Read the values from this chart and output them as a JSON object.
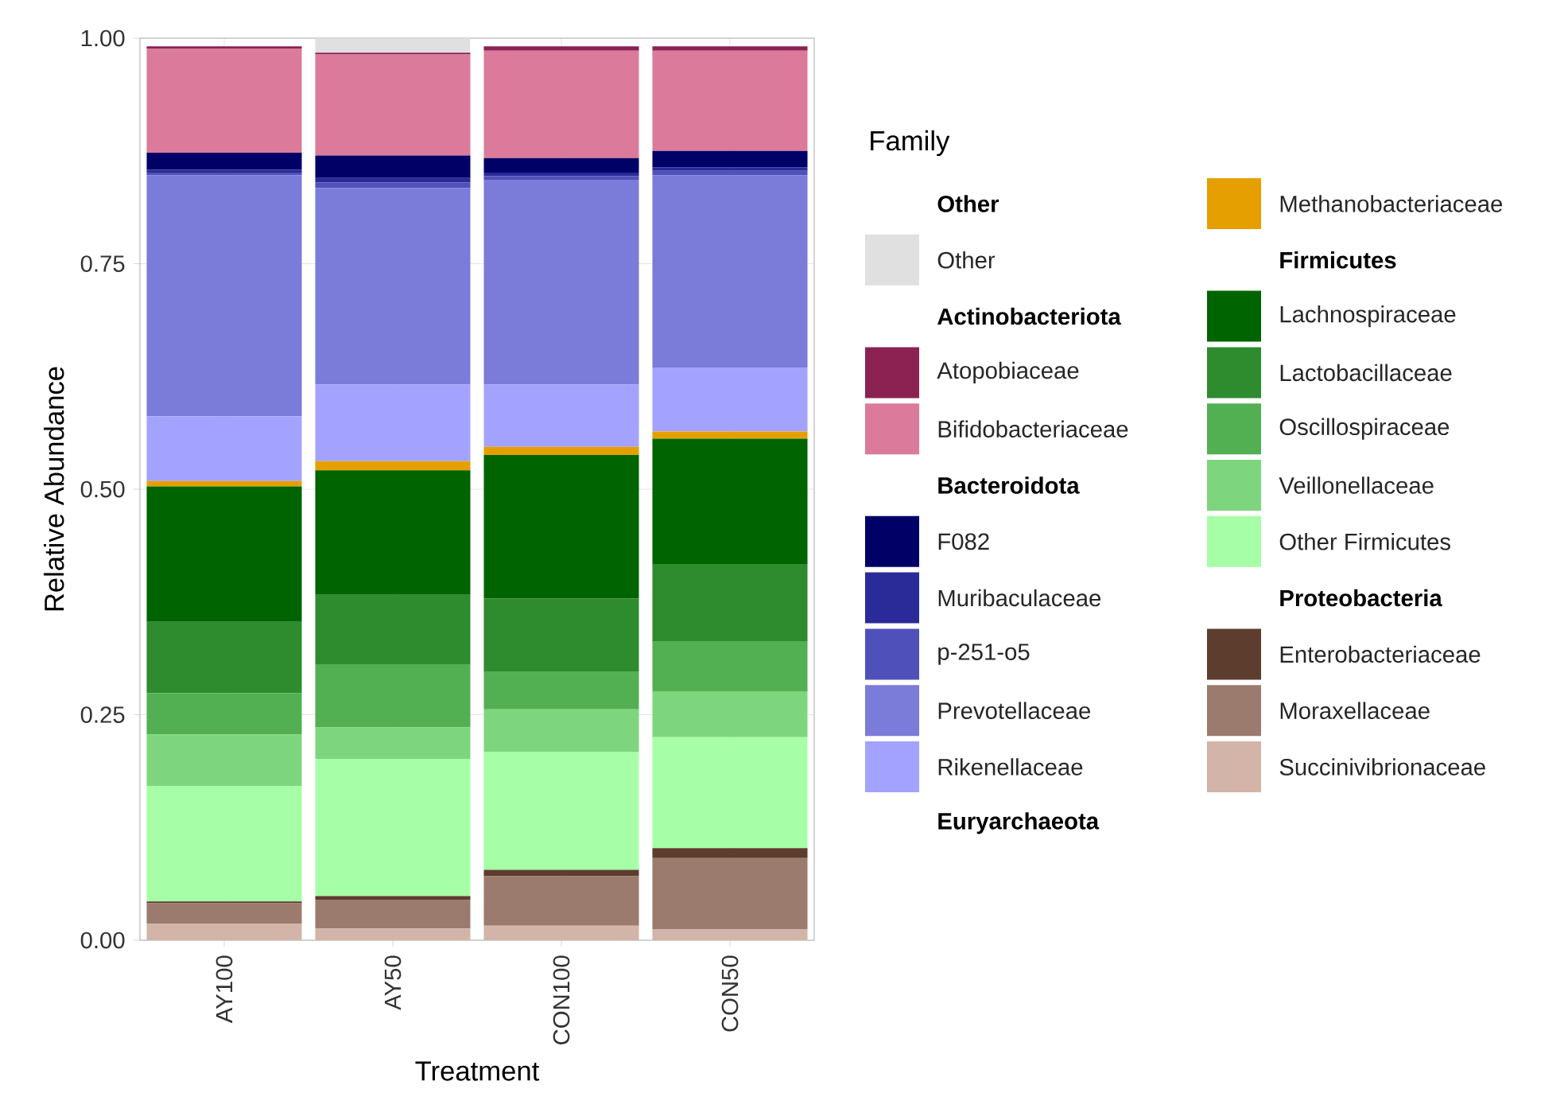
{
  "chart_data": {
    "type": "bar",
    "stacked": true,
    "xlabel": "Treatment",
    "ylabel": "Relative Abundance",
    "legend_title": "Family",
    "legend": "right",
    "grid": true,
    "categories": [
      "AY100",
      "AY50",
      "CON100",
      "CON50"
    ],
    "ylim": [
      0,
      1
    ],
    "yticks": [
      {
        "value": 0,
        "label": "0.00"
      },
      {
        "value": 0.25,
        "label": "0.25"
      },
      {
        "value": 0.5,
        "label": "0.50"
      },
      {
        "value": 0.75,
        "label": "0.75"
      },
      {
        "value": 1,
        "label": "1.00"
      }
    ],
    "annotations": [
      "Other",
      "Actinobacteriota",
      "Bacteroidota",
      "Euryarchaeota",
      "Firmicutes",
      "Proteobacteria"
    ],
    "series": [
      {
        "name": "Succinivibrionaceae",
        "color": "#d2b4a8",
        "values": [
          0.018,
          0.013,
          0.016,
          0.012
        ]
      },
      {
        "name": "Moraxellaceae",
        "color": "#9b7b6e",
        "values": [
          0.023,
          0.032,
          0.055,
          0.079
        ]
      },
      {
        "name": "Enterobacteriaceae",
        "color": "#5c3d2e",
        "values": [
          0.002,
          0.004,
          0.007,
          0.011
        ]
      },
      {
        "name": "Other Firmicutes",
        "color": "#a6ffa6",
        "values": [
          0.128,
          0.152,
          0.131,
          0.123
        ]
      },
      {
        "name": "Veillonellaceae",
        "color": "#7dd67d",
        "values": [
          0.057,
          0.035,
          0.047,
          0.051
        ]
      },
      {
        "name": "Oscillospiraceae",
        "color": "#52b052",
        "values": [
          0.046,
          0.07,
          0.042,
          0.055
        ]
      },
      {
        "name": "Lactobacillaceae",
        "color": "#2e8b2e",
        "values": [
          0.079,
          0.077,
          0.081,
          0.086
        ]
      },
      {
        "name": "Lachnospiraceae",
        "color": "#006400",
        "values": [
          0.15,
          0.138,
          0.159,
          0.139
        ]
      },
      {
        "name": "Methanobacteriaceae",
        "color": "#e5a000",
        "values": [
          0.006,
          0.01,
          0.009,
          0.008
        ]
      },
      {
        "name": "Rikenellaceae",
        "color": "#a3a3ff",
        "values": [
          0.072,
          0.085,
          0.069,
          0.071
        ]
      },
      {
        "name": "Prevotellaceae",
        "color": "#7b7bd9",
        "values": [
          0.267,
          0.218,
          0.227,
          0.213
        ]
      },
      {
        "name": "p-251-o5",
        "color": "#5050bb",
        "values": [
          0.003,
          0.006,
          0.004,
          0.005
        ]
      },
      {
        "name": "Muribaculaceae",
        "color": "#2a2a99",
        "values": [
          0.003,
          0.005,
          0.004,
          0.004
        ]
      },
      {
        "name": "F082",
        "color": "#000066",
        "values": [
          0.019,
          0.025,
          0.016,
          0.018
        ]
      },
      {
        "name": "Bifidobacteriaceae",
        "color": "#db7a9b",
        "values": [
          0.115,
          0.112,
          0.119,
          0.111
        ]
      },
      {
        "name": "Atopobiaceae",
        "color": "#8b2252",
        "values": [
          0.003,
          0.002,
          0.005,
          0.005
        ]
      },
      {
        "name": "Other",
        "color": "#e0e0e0",
        "values": [
          0,
          0.016,
          0,
          0
        ]
      }
    ]
  }
}
